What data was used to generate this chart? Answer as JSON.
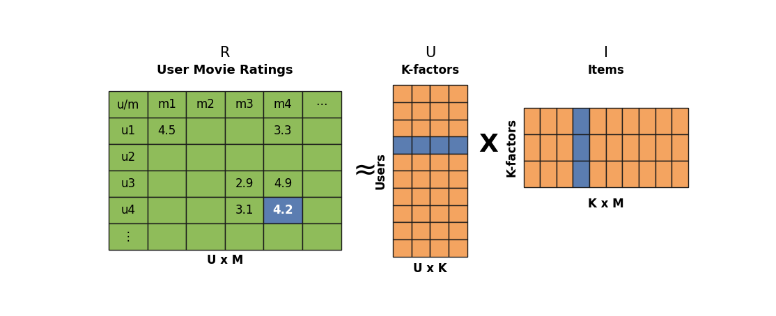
{
  "bg_color": "#ffffff",
  "green_color": "#8fbc5a",
  "orange_color": "#f4a460",
  "blue_color": "#5b7db1",
  "grid_line_color": "#1a1a1a",
  "text_color": "#000000",
  "white_text": "#ffffff",
  "R_title": "R",
  "R_subtitle": "User Movie Ratings",
  "R_bottom_label": "U x M",
  "R_col_headers": [
    "u/m",
    "m1",
    "m2",
    "m3",
    "m4",
    "⋯"
  ],
  "R_row_headers": [
    "u1",
    "u2",
    "u3",
    "u4",
    "⋮"
  ],
  "R_data": [
    [
      "4.5",
      "",
      "",
      "3.3",
      ""
    ],
    [
      "",
      "",
      "",
      "",
      ""
    ],
    [
      "",
      "",
      "2.9",
      "4.9",
      ""
    ],
    [
      "",
      "",
      "3.1",
      "4.2",
      ""
    ],
    [
      "",
      "",
      "",
      "",
      ""
    ]
  ],
  "R_blue_grid_row": 4,
  "R_blue_grid_col": 4,
  "U_title": "U",
  "U_label_top": "K-factors",
  "U_label_left": "Users",
  "U_bottom_label": "U x K",
  "U_cols": 4,
  "U_rows": 10,
  "U_blue_row": 3,
  "I_title": "I",
  "I_label_top": "Items",
  "I_label_left": "K-factors",
  "I_bottom_label": "K x M",
  "I_cols": 10,
  "I_rows": 3,
  "I_blue_col": 3,
  "approx_symbol": "≈",
  "times_symbol": "X",
  "font_size_title": 15,
  "font_size_subtitle": 13,
  "font_size_label": 12,
  "font_size_cell": 12,
  "font_size_symbol": 26,
  "font_size_axis_label": 12
}
